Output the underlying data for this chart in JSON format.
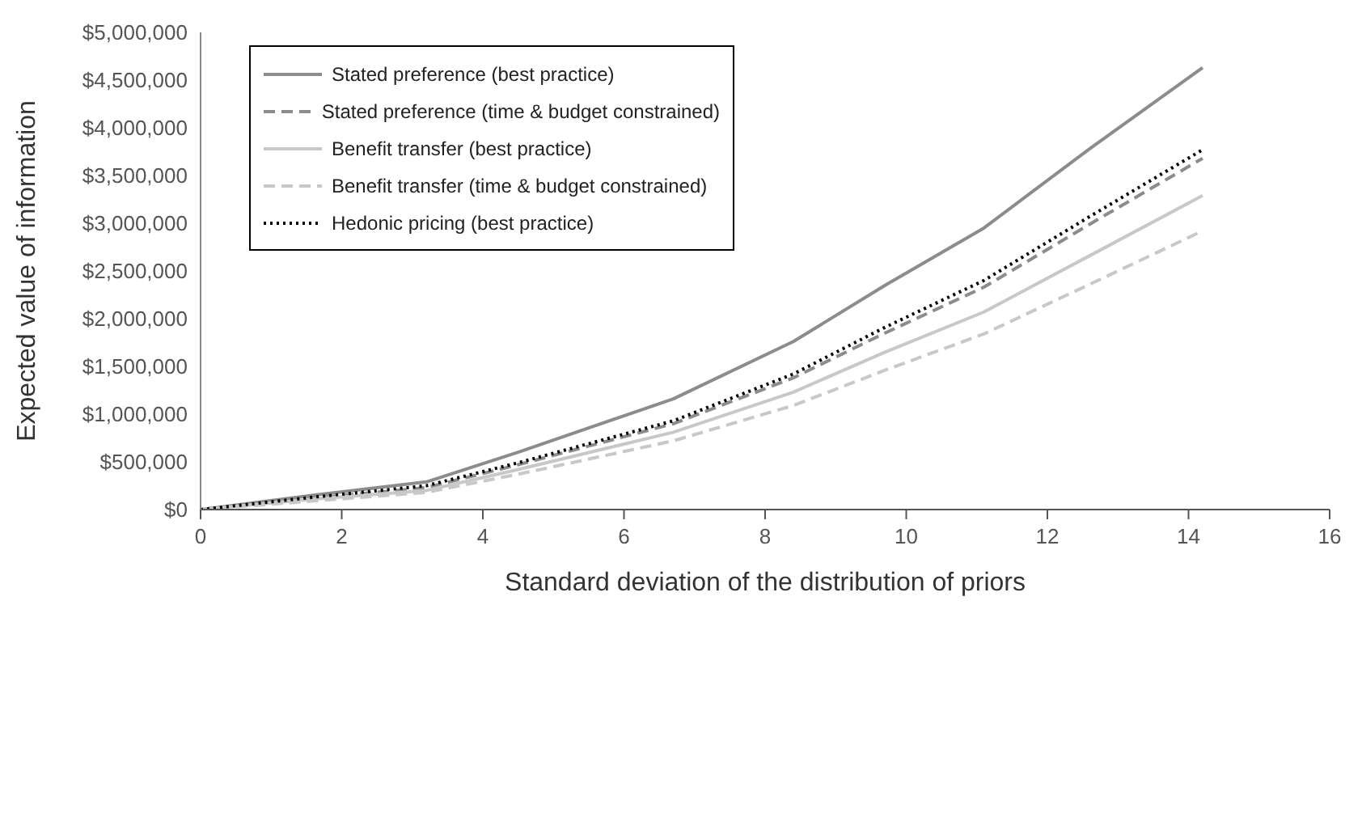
{
  "chart_data": {
    "type": "line",
    "xlabel": "Standard deviation of the distribution of priors",
    "ylabel": "Expected value of information",
    "x": [
      0,
      1.6,
      3.2,
      4.5,
      6.7,
      8.4,
      9.7,
      11.1,
      12.6,
      14.2
    ],
    "series": [
      {
        "name": "Stated preference (best practice)",
        "color": "#8c8c8c",
        "line_style": "solid",
        "values": [
          0,
          150000,
          290000,
          600000,
          1160000,
          1760000,
          2350000,
          2950000,
          3780000,
          4630000
        ]
      },
      {
        "name": "Stated preference (time & budget constrained)",
        "color": "#8c8c8c",
        "line_style": "dashed",
        "values": [
          0,
          120000,
          230000,
          470000,
          900000,
          1380000,
          1850000,
          2330000,
          2990000,
          3680000
        ]
      },
      {
        "name": "Benefit transfer (best practice)",
        "color": "#c8c8c8",
        "line_style": "solid",
        "values": [
          0,
          110000,
          200000,
          420000,
          810000,
          1230000,
          1650000,
          2070000,
          2660000,
          3290000
        ]
      },
      {
        "name": "Benefit transfer (time & budget constrained)",
        "color": "#c8c8c8",
        "line_style": "dashed",
        "values": [
          0,
          90000,
          180000,
          370000,
          720000,
          1090000,
          1460000,
          1840000,
          2360000,
          2920000
        ]
      },
      {
        "name": "Hedonic pricing (best practice)",
        "color": "#000000",
        "line_style": "dotted",
        "values": [
          0,
          130000,
          250000,
          490000,
          930000,
          1420000,
          1910000,
          2400000,
          3070000,
          3770000
        ]
      }
    ],
    "xlim": [
      0,
      16
    ],
    "xticks": [
      0,
      2,
      4,
      6,
      8,
      10,
      12,
      14,
      16
    ],
    "ylim": [
      0,
      5000000
    ],
    "yticks": [
      {
        "value": 0,
        "label": "$0"
      },
      {
        "value": 500000,
        "label": "$500,000"
      },
      {
        "value": 1000000,
        "label": "$1,000,000"
      },
      {
        "value": 1500000,
        "label": "$1,500,000"
      },
      {
        "value": 2000000,
        "label": "$2,000,000"
      },
      {
        "value": 2500000,
        "label": "$2,500,000"
      },
      {
        "value": 3000000,
        "label": "$3,000,000"
      },
      {
        "value": 3500000,
        "label": "$3,500,000"
      },
      {
        "value": 4000000,
        "label": "$4,000,000"
      },
      {
        "value": 4500000,
        "label": "$4,500,000"
      },
      {
        "value": 5000000,
        "label": "$5,000,000"
      }
    ],
    "grid": false,
    "legend": "top left",
    "marker": "none"
  }
}
